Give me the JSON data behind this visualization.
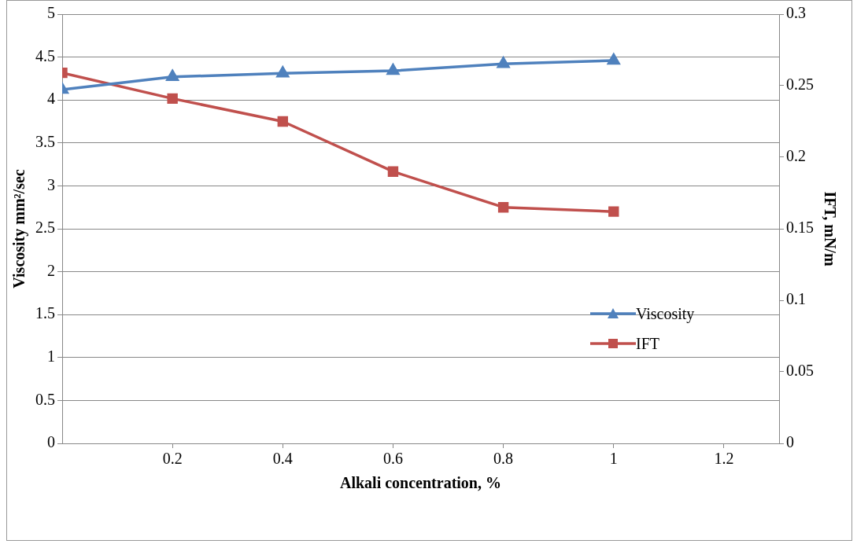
{
  "chart_data": {
    "type": "line",
    "xlabel": "Alkali concentration, %",
    "ylabel": "Viscosity mm²/sec",
    "y2label": "IFT, mN/m",
    "x": [
      0,
      0.2,
      0.4,
      0.6,
      0.8,
      1.0
    ],
    "series": [
      {
        "name": "Viscosity",
        "color": "#4f81bd",
        "marker": "triangle",
        "values": [
          4.12,
          4.27,
          4.31,
          4.34,
          4.42,
          4.46
        ]
      },
      {
        "name": "IFT",
        "color": "#c0504d",
        "marker": "square",
        "axis": "y2",
        "values": [
          0.259,
          0.241,
          0.225,
          0.19,
          0.165,
          0.162
        ]
      }
    ],
    "xlim": [
      0,
      1.3
    ],
    "xticks": [
      0.2,
      0.4,
      0.6,
      0.8,
      1,
      1.2
    ],
    "ylim": [
      0,
      5
    ],
    "yticks": [
      0,
      0.5,
      1,
      1.5,
      2,
      2.5,
      3,
      3.5,
      4,
      4.5,
      5
    ],
    "y2lim": [
      0,
      0.3
    ],
    "y2ticks": [
      0,
      0.05,
      0.1,
      0.15,
      0.2,
      0.25,
      0.3
    ],
    "grid": "y",
    "legend": "right",
    "line_style": "solid"
  }
}
